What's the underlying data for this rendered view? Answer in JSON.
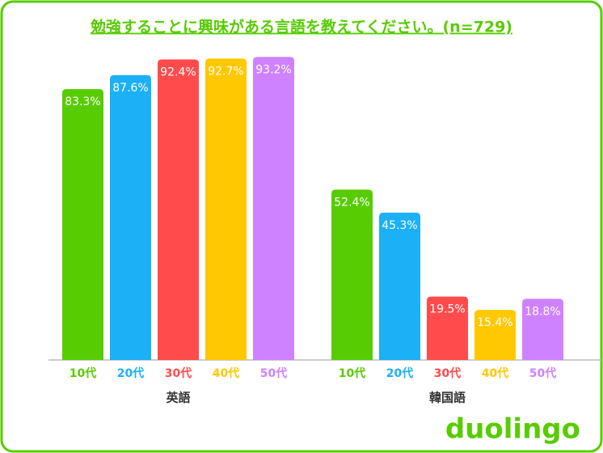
{
  "chart_data": {
    "type": "bar",
    "title": "勉強することに興味がある言語を教えてください。(n=729)",
    "categories": [
      "英語",
      "韓国語"
    ],
    "series": [
      {
        "name": "10代",
        "color": "#58cc02",
        "values": [
          83.3,
          52.4
        ],
        "value_labels": [
          "83.3%",
          "52.4%"
        ]
      },
      {
        "name": "20代",
        "color": "#1cb0f6",
        "values": [
          87.6,
          45.3
        ],
        "value_labels": [
          "87.6%",
          "45.3%"
        ]
      },
      {
        "name": "30代",
        "color": "#ff4b4b",
        "values": [
          92.4,
          19.5
        ],
        "value_labels": [
          "92.4%",
          "19.5%"
        ]
      },
      {
        "name": "40代",
        "color": "#ffc800",
        "values": [
          92.7,
          15.4
        ],
        "value_labels": [
          "92.7%",
          "15.4%"
        ]
      },
      {
        "name": "50代",
        "color": "#ce82ff",
        "values": [
          93.2,
          18.8
        ],
        "value_labels": [
          "93.2%",
          "18.8%"
        ]
      }
    ],
    "logo": "duolingo"
  }
}
